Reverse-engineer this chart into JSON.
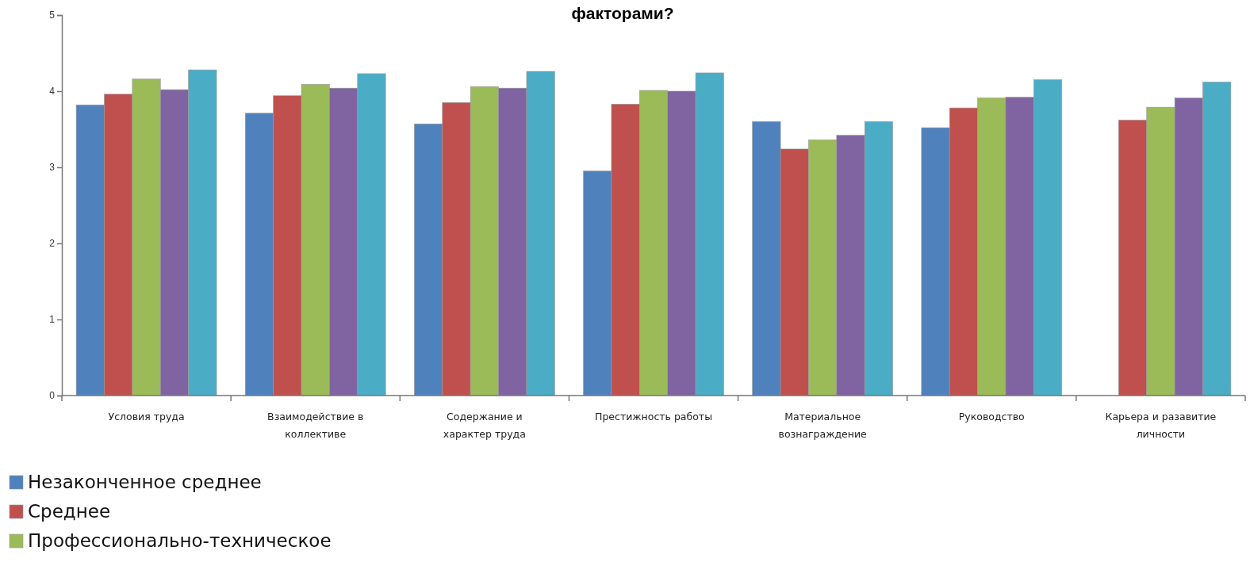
{
  "chart_data": {
    "type": "bar",
    "title": "факторами?",
    "categories": [
      "Условия труда",
      "Взаимодействие в коллективе",
      "Содержание и характер труда",
      "Престижность работы",
      "Материальное вознаграждение",
      "Руководство",
      "Карьера и разавитие личности"
    ],
    "series": [
      {
        "name": "Незаконченное среднее",
        "color": "#4f81bd",
        "values": [
          3.82,
          3.71,
          3.57,
          2.95,
          3.6,
          3.52,
          null
        ]
      },
      {
        "name": "Среднее",
        "color": "#c0504d",
        "values": [
          3.96,
          3.94,
          3.85,
          3.83,
          3.24,
          3.78,
          3.62
        ]
      },
      {
        "name": "Профессионально-техническое",
        "color": "#9bbb59",
        "values": [
          4.16,
          4.09,
          4.06,
          4.01,
          3.36,
          3.91,
          3.79
        ]
      },
      {
        "color": "#8064a2",
        "values": [
          4.02,
          4.04,
          4.04,
          4.0,
          3.42,
          3.92,
          3.91
        ]
      },
      {
        "color": "#4bacc6",
        "values": [
          4.28,
          4.23,
          4.26,
          4.24,
          3.6,
          4.15,
          4.12
        ]
      }
    ],
    "ylim": [
      0,
      5
    ],
    "yticks": [
      0,
      1,
      2,
      3,
      4,
      5
    ],
    "grid": false,
    "legend": "bottom left"
  }
}
